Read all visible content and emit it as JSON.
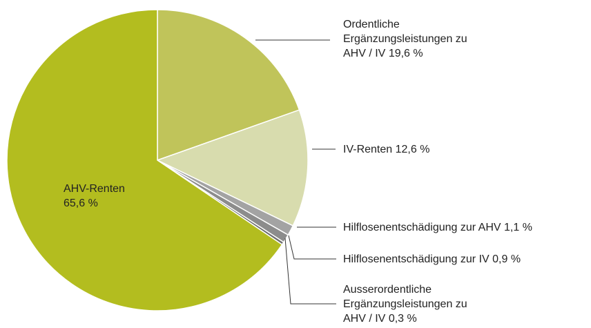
{
  "chart_data": {
    "type": "pie",
    "categories": [
      "Ordentliche Ergänzungsleistungen zu AHV / IV",
      "IV-Renten",
      "Hilflosenentschädigung zur AHV",
      "Hilflosenentschädigung zur IV",
      "Ausserordentliche Ergänzungsleistungen zu AHV / IV",
      "AHV-Renten"
    ],
    "values": [
      19.6,
      12.6,
      1.1,
      0.9,
      0.3,
      65.6
    ],
    "value_labels": [
      "19,6 %",
      "12,6 %",
      "1,1 %",
      "0,9 %",
      "0,3 %",
      "65,6 %"
    ],
    "colors": [
      "#c0c45a",
      "#d8dcae",
      "#a3a3a3",
      "#8c8c8c",
      "#6e6e6e",
      "#b3bd1f"
    ]
  }
}
